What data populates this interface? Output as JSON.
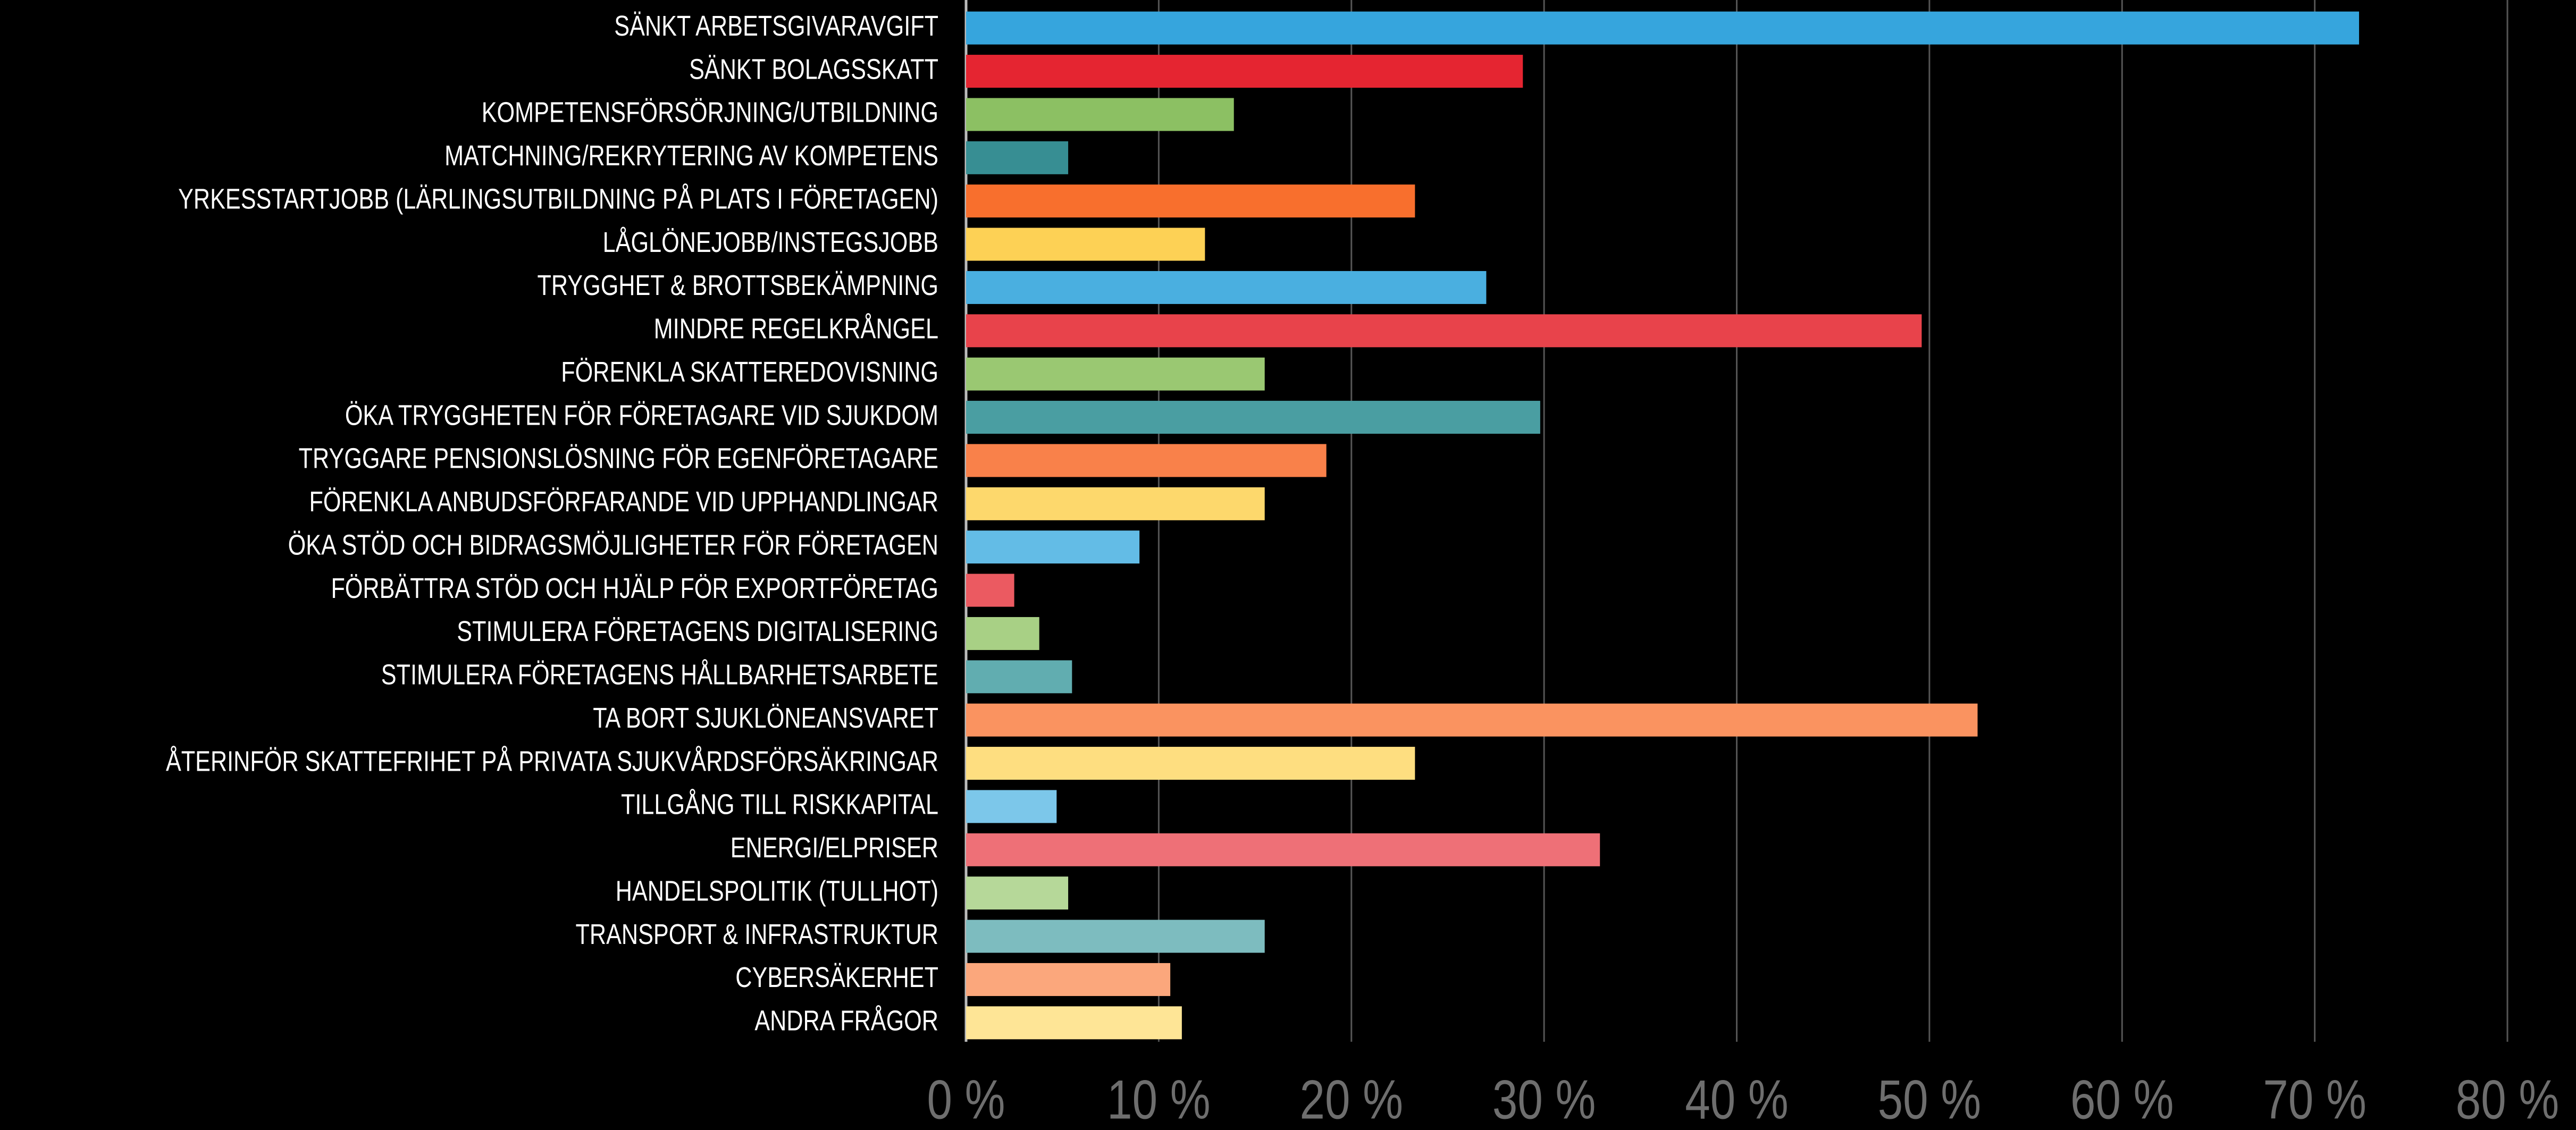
{
  "chart_data": {
    "type": "bar",
    "orientation": "horizontal",
    "categories": [
      "SÄNKT ARBETSGIVARAVGIFT",
      "SÄNKT BOLAGSSKATT",
      "KOMPETENSFÖRSÖRJNING/UTBILDNING",
      "MATCHNING/REKRYTERING AV KOMPETENS",
      "YRKESSTARTJOBB (LÄRLINGSUTBILDNING PÅ PLATS I FÖRETAGEN)",
      "LÅGLÖNEJOBB/INSTEGSJOBB",
      "TRYGGHET & BROTTSBEKÄMPNING",
      "MINDRE REGELKRÅNGEL",
      "FÖRENKLA SKATTEREDOVISNING",
      "ÖKA TRYGGHETEN FÖR FÖRETAGARE VID SJUKDOM",
      "TRYGGARE PENSIONSLÖSNING FÖR EGENFÖRETAGARE",
      "FÖRENKLA ANBUDSFÖRFARANDE VID UPPHANDLINGAR",
      "ÖKA STÖD OCH BIDRAGSMÖJLIGHETER FÖR FÖRETAGEN",
      "FÖRBÄTTRA STÖD OCH HJÄLP FÖR EXPORTFÖRETAG",
      "STIMULERA FÖRETAGENS DIGITALISERING",
      "STIMULERA FÖRETAGENS HÅLLBARHETSARBETE",
      "TA BORT SJUKLÖNEANSVARET",
      "ÅTERINFÖR SKATTEFRIHET PÅ PRIVATA SJUKVÅRDSFÖRSÄKRINGAR",
      "TILLGÅNG TILL RISKKAPITAL",
      "ENERGI/ELPRISER",
      "HANDELSPOLITIK (TULLHOT)",
      "TRANSPORT & INFRASTRUKTUR",
      "CYBERSÄKERHET",
      "ANDRA FRÅGOR"
    ],
    "values": [
      72.3,
      28.9,
      13.9,
      5.3,
      23.3,
      12.4,
      27,
      49.6,
      15.5,
      29.8,
      18.7,
      15.5,
      9,
      2.5,
      3.8,
      5.5,
      52.5,
      23.3,
      4.7,
      32.9,
      5.3,
      15.5,
      10.6,
      11.2
    ],
    "colors": [
      "#36a5dd",
      "#e52531",
      "#8cc063",
      "#378e93",
      "#f86f2d",
      "#fdd155",
      "#4aafe0",
      "#e8434b",
      "#9ac872",
      "#4a9ea2",
      "#f9814a",
      "#fdd86c",
      "#63bce6",
      "#eb5a61",
      "#a8d085",
      "#61adb0",
      "#fa9360",
      "#fede80",
      "#7cc7ea",
      "#ee7077",
      "#b6d899",
      "#7dbcbf",
      "#fba77c",
      "#fee596"
    ],
    "xlim": [
      0,
      80
    ],
    "xticks": [
      {
        "value": 0,
        "label": "0 %"
      },
      {
        "value": 10,
        "label": "10 %"
      },
      {
        "value": 20,
        "label": "20 %"
      },
      {
        "value": 30,
        "label": "30 %"
      },
      {
        "value": 40,
        "label": "40 %"
      },
      {
        "value": 50,
        "label": "50 %"
      },
      {
        "value": 60,
        "label": "60 %"
      },
      {
        "value": 70,
        "label": "70 %"
      },
      {
        "value": 80,
        "label": "80 %"
      }
    ],
    "grid": true
  }
}
